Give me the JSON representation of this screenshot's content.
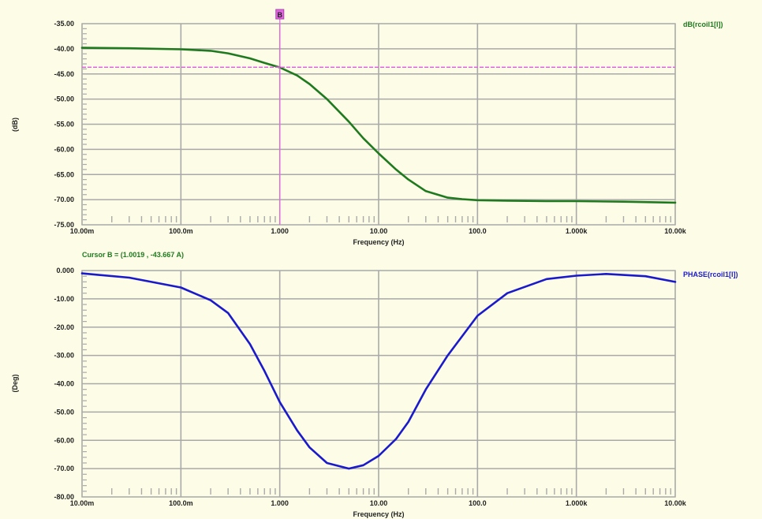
{
  "chart_data": [
    {
      "type": "line",
      "ylabel": "(dB)",
      "xlabel": "Frequency (Hz)",
      "x_scale": "log",
      "xlim": [
        0.01,
        10000
      ],
      "ylim": [
        -75,
        -35
      ],
      "x_ticks": [
        0.01,
        0.1,
        1,
        10,
        100,
        1000,
        10000
      ],
      "x_tick_labels": [
        "10.00m",
        "100.0m",
        "1.000",
        "10.00",
        "100.0",
        "1.000k",
        "10.00k"
      ],
      "y_ticks": [
        -35,
        -40,
        -45,
        -50,
        -55,
        -60,
        -65,
        -70,
        -75
      ],
      "y_tick_labels": [
        "-35.00",
        "-40.00",
        "-45.00",
        "-50.00",
        "-55.00",
        "-60.00",
        "-65.00",
        "-70.00",
        "-75.00"
      ],
      "grid": true,
      "series": [
        {
          "name": "dB(rcoil1[I])",
          "color": "#1f7a1f",
          "x": [
            0.01,
            0.03,
            0.1,
            0.2,
            0.3,
            0.5,
            0.7,
            1,
            1.5,
            2,
            3,
            5,
            7,
            10,
            15,
            20,
            30,
            50,
            70,
            100,
            200,
            500,
            1000,
            3000,
            10000
          ],
          "y": [
            -39.8,
            -39.9,
            -40.1,
            -40.4,
            -40.9,
            -41.9,
            -42.8,
            -43.7,
            -45.3,
            -47.0,
            -50.0,
            -54.5,
            -57.8,
            -60.8,
            -64.0,
            -66.0,
            -68.3,
            -69.6,
            -69.9,
            -70.1,
            -70.2,
            -70.3,
            -70.3,
            -70.4,
            -70.6
          ]
        }
      ],
      "cursor": {
        "label": "B",
        "x": 1.0019,
        "y": -43.667,
        "readout": "Cursor B = (1.0019 , -43.667 A)",
        "color": "#e066e0"
      }
    },
    {
      "type": "line",
      "ylabel": "(Deg)",
      "xlabel": "Frequency (Hz)",
      "x_scale": "log",
      "xlim": [
        0.01,
        10000
      ],
      "ylim": [
        -80,
        0
      ],
      "x_ticks": [
        0.01,
        0.1,
        1,
        10,
        100,
        1000,
        10000
      ],
      "x_tick_labels": [
        "10.00m",
        "100.0m",
        "1.000",
        "10.00",
        "100.0",
        "1.000k",
        "10.00k"
      ],
      "y_ticks": [
        0,
        -10,
        -20,
        -30,
        -40,
        -50,
        -60,
        -70,
        -80
      ],
      "y_tick_labels": [
        "0.000",
        "-10.00",
        "-20.00",
        "-30.00",
        "-40.00",
        "-50.00",
        "-60.00",
        "-70.00",
        "-80.00"
      ],
      "grid": true,
      "series": [
        {
          "name": "PHASE(rcoil1[I])",
          "color": "#1a1acc",
          "x": [
            0.01,
            0.03,
            0.1,
            0.2,
            0.3,
            0.5,
            0.7,
            1,
            1.5,
            2,
            3,
            5,
            7,
            10,
            15,
            20,
            30,
            50,
            100,
            200,
            500,
            1000,
            2000,
            5000,
            10000
          ],
          "y": [
            -1.0,
            -2.5,
            -6.0,
            -10.5,
            -15.0,
            -26.0,
            -35.5,
            -46.5,
            -56.5,
            -62.5,
            -68.0,
            -70.0,
            -68.8,
            -65.5,
            -59.5,
            -53.5,
            -42.0,
            -30.0,
            -16.0,
            -8.0,
            -3.0,
            -1.8,
            -1.2,
            -2.0,
            -4.0
          ]
        }
      ]
    }
  ]
}
